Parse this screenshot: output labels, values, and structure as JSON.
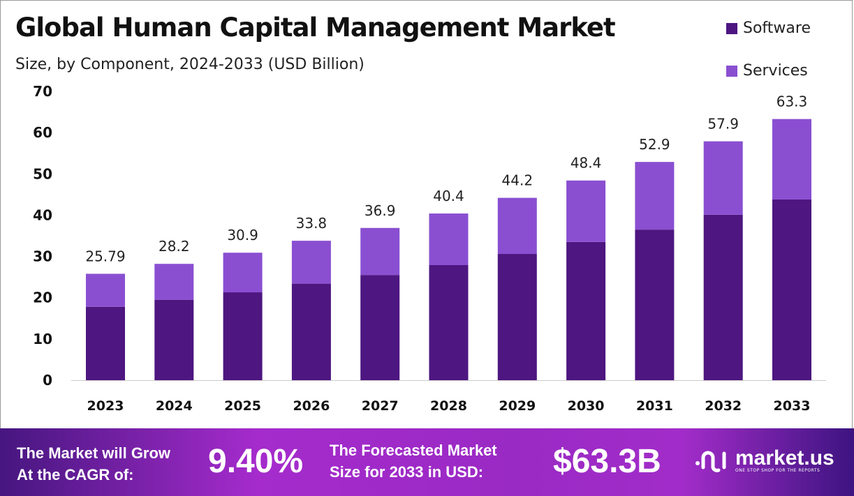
{
  "chart_data": {
    "type": "bar",
    "stacked": true,
    "title": "Global Human Capital Management Market",
    "subtitle": "Size, by Component, 2024-2033 (USD Billion)",
    "xlabel": "",
    "ylabel": "",
    "ylim": [
      0,
      70
    ],
    "yticks": [
      0,
      10,
      20,
      30,
      40,
      50,
      60,
      70
    ],
    "grid": false,
    "legend_position": "top-right",
    "categories": [
      "2023",
      "2024",
      "2025",
      "2026",
      "2027",
      "2028",
      "2029",
      "2030",
      "2031",
      "2032",
      "2033"
    ],
    "series": [
      {
        "name": "Software",
        "color": "#4e1680",
        "values": [
          17.8,
          19.5,
          21.3,
          23.4,
          25.5,
          27.9,
          30.6,
          33.5,
          36.5,
          40.1,
          43.8
        ]
      },
      {
        "name": "Services",
        "color": "#8a4fd1",
        "values": [
          7.99,
          8.7,
          9.6,
          10.4,
          11.4,
          12.5,
          13.6,
          14.9,
          16.4,
          17.8,
          19.5
        ]
      }
    ],
    "totals": [
      "25.79",
      "28.2",
      "30.9",
      "33.8",
      "36.9",
      "40.4",
      "44.2",
      "48.4",
      "52.9",
      "57.9",
      "63.3"
    ]
  },
  "footer": {
    "cagr_label_1": "The Market will Grow",
    "cagr_label_2": "At the CAGR of:",
    "cagr_value": "9.40%",
    "forecast_label_1": "The Forecasted Market",
    "forecast_label_2": "Size for 2033 in USD:",
    "forecast_value": "$63.3B",
    "logo_name": "market.us",
    "logo_tagline": "ONE STOP SHOP FOR THE REPORTS"
  }
}
